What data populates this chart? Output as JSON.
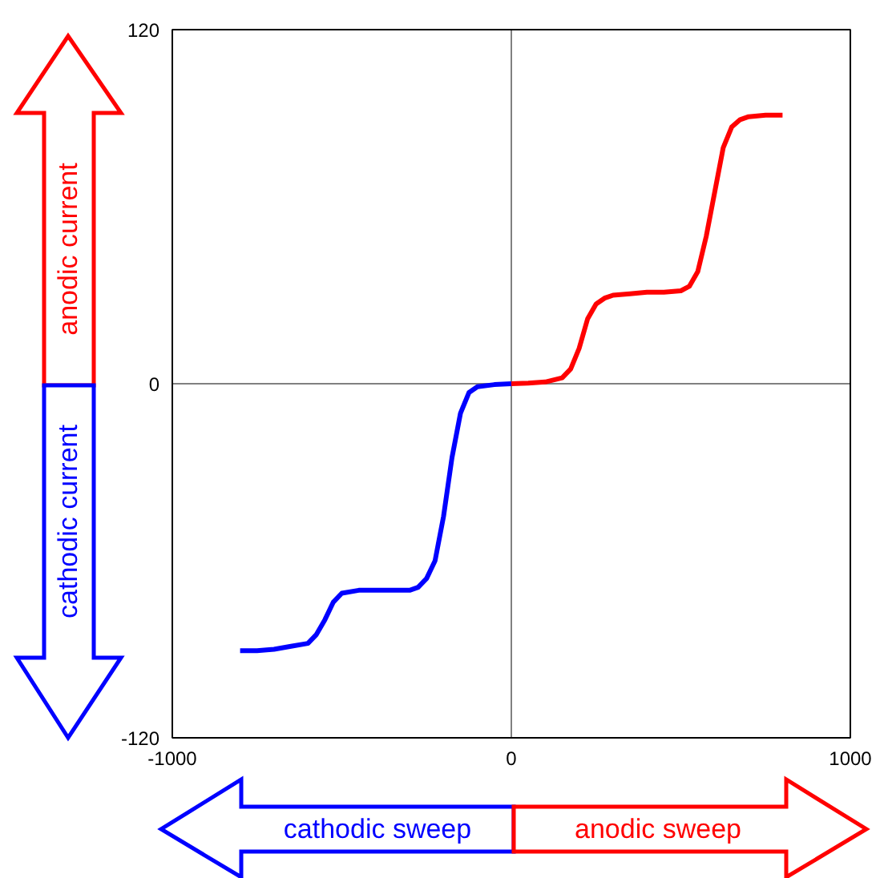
{
  "chart_data": {
    "type": "line",
    "series": [
      {
        "color": "#0000ff",
        "x": [
          0,
          -50,
          -100,
          -125,
          -150,
          -175,
          -200,
          -225,
          -250,
          -275,
          -300,
          -350,
          -400,
          -450,
          -500,
          -525,
          -550,
          -575,
          -600,
          -650,
          -700,
          -750,
          -800
        ],
        "values": [
          0,
          -0.3,
          -1,
          -3,
          -10,
          -25,
          -45,
          -60,
          -66,
          -69,
          -70,
          -70,
          -70,
          -70,
          -71,
          -74,
          -80,
          -85,
          -88,
          -89,
          -90,
          -90.5,
          -90.5
        ]
      },
      {
        "color": "#ff0000",
        "x": [
          0,
          50,
          100,
          150,
          175,
          200,
          225,
          250,
          275,
          300,
          350,
          400,
          450,
          500,
          525,
          550,
          575,
          600,
          625,
          650,
          675,
          700,
          750,
          800
        ],
        "values": [
          0,
          0.2,
          0.6,
          2,
          5,
          12,
          22,
          27,
          29,
          30,
          30.5,
          31,
          31,
          31.5,
          33,
          38,
          50,
          65,
          80,
          87,
          89.5,
          90.5,
          91,
          91
        ]
      }
    ],
    "xlim": [
      -1000,
      1000
    ],
    "ylim": [
      -120,
      120
    ],
    "xticks": [
      -1000,
      0,
      1000
    ],
    "yticks": [
      -120,
      0,
      120
    ],
    "grid": true,
    "annotations": [
      "anodic current",
      "cathodic current",
      "cathodic sweep",
      "anodic sweep"
    ]
  }
}
